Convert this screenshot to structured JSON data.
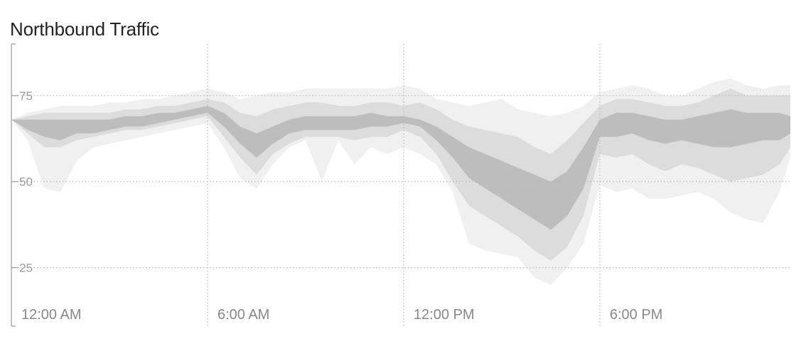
{
  "chart_data": {
    "type": "area",
    "title": "Northbound Traffic",
    "xlabel": "",
    "ylabel": "",
    "xlim": [
      0,
      23.83
    ],
    "ylim": [
      8,
      90
    ],
    "grid": true,
    "y_ticks": [
      25,
      50,
      75
    ],
    "x_ticks": [
      {
        "value": 0,
        "label": "12:00 AM"
      },
      {
        "value": 6,
        "label": "6:00 AM"
      },
      {
        "value": 12,
        "label": "12:00 PM"
      },
      {
        "value": 18,
        "label": "6:00 PM"
      }
    ],
    "colors": {
      "band_outer": "#f0f0f0",
      "band_middle": "#dcdcdc",
      "band_inner": "#bdbdbd",
      "grid": "#b5b5b5"
    },
    "x": [
      0,
      0.5,
      1,
      1.5,
      2,
      2.5,
      3,
      3.5,
      4,
      4.5,
      5,
      5.5,
      6,
      6.5,
      7,
      7.5,
      8,
      8.5,
      9,
      9.5,
      10,
      10.5,
      11,
      11.5,
      12,
      12.5,
      13,
      13.5,
      14,
      14.5,
      15,
      15.5,
      16,
      16.5,
      17,
      17.5,
      18,
      18.5,
      19,
      19.5,
      20,
      20.5,
      21,
      21.5,
      22,
      22.5,
      23,
      23.5,
      23.83
    ],
    "bands": [
      {
        "lower": [
          68,
          62,
          48,
          47,
          56,
          60,
          61,
          62,
          63,
          64,
          65,
          66,
          67,
          60,
          51,
          48,
          55,
          60,
          62,
          50,
          62,
          55,
          60,
          58,
          60,
          58,
          55,
          47,
          32,
          30,
          29,
          28,
          22,
          20,
          25,
          32,
          49,
          47,
          48,
          45,
          45,
          46,
          47,
          45,
          41,
          39,
          38,
          47,
          57
        ],
        "upper": [
          68,
          70,
          71,
          72,
          72,
          72,
          73,
          73,
          74,
          74,
          75,
          76,
          77,
          76,
          74,
          75,
          76,
          76,
          77,
          77,
          77,
          77,
          77,
          77,
          78,
          77,
          74,
          73,
          72,
          73,
          74,
          71,
          70,
          69,
          70,
          72,
          76,
          77,
          78,
          77,
          75,
          75,
          77,
          79,
          80,
          78,
          77,
          78,
          78
        ]
      },
      {
        "lower": [
          68,
          64,
          60,
          60,
          62,
          63,
          64,
          65,
          65,
          66,
          67,
          68,
          69,
          63,
          57,
          52,
          58,
          61,
          63,
          63,
          63,
          62,
          63,
          63,
          65,
          63,
          58,
          50,
          43,
          40,
          37,
          34,
          30,
          27,
          31,
          40,
          58,
          57,
          58,
          55,
          53,
          55,
          54,
          52,
          50,
          51,
          52,
          55,
          60
        ],
        "upper": [
          68,
          69,
          70,
          70,
          70,
          70,
          70,
          71,
          71,
          72,
          72,
          73,
          74,
          73,
          70,
          69,
          71,
          72,
          73,
          73,
          72,
          72,
          73,
          73,
          72,
          73,
          71,
          68,
          66,
          65,
          64,
          63,
          60,
          58,
          62,
          67,
          72,
          74,
          74,
          73,
          72,
          72,
          73,
          75,
          77,
          75,
          75,
          75,
          75
        ]
      },
      {
        "lower": [
          68,
          65,
          63,
          62,
          64,
          64,
          65,
          66,
          66,
          67,
          68,
          69,
          70,
          66,
          61,
          57,
          61,
          64,
          65,
          65,
          65,
          65,
          66,
          66,
          67,
          66,
          62,
          57,
          51,
          48,
          45,
          42,
          39,
          36,
          40,
          48,
          63,
          63,
          64,
          62,
          61,
          62,
          61,
          60,
          60,
          61,
          62,
          62,
          64
        ],
        "upper": [
          68,
          68,
          68,
          68,
          68,
          68,
          68,
          69,
          69,
          70,
          70,
          71,
          72,
          70,
          66,
          64,
          66,
          68,
          69,
          69,
          69,
          69,
          70,
          69,
          69,
          68,
          66,
          63,
          60,
          58,
          56,
          54,
          52,
          50,
          53,
          60,
          68,
          70,
          70,
          69,
          68,
          68,
          69,
          70,
          71,
          70,
          70,
          70,
          69
        ]
      }
    ]
  }
}
